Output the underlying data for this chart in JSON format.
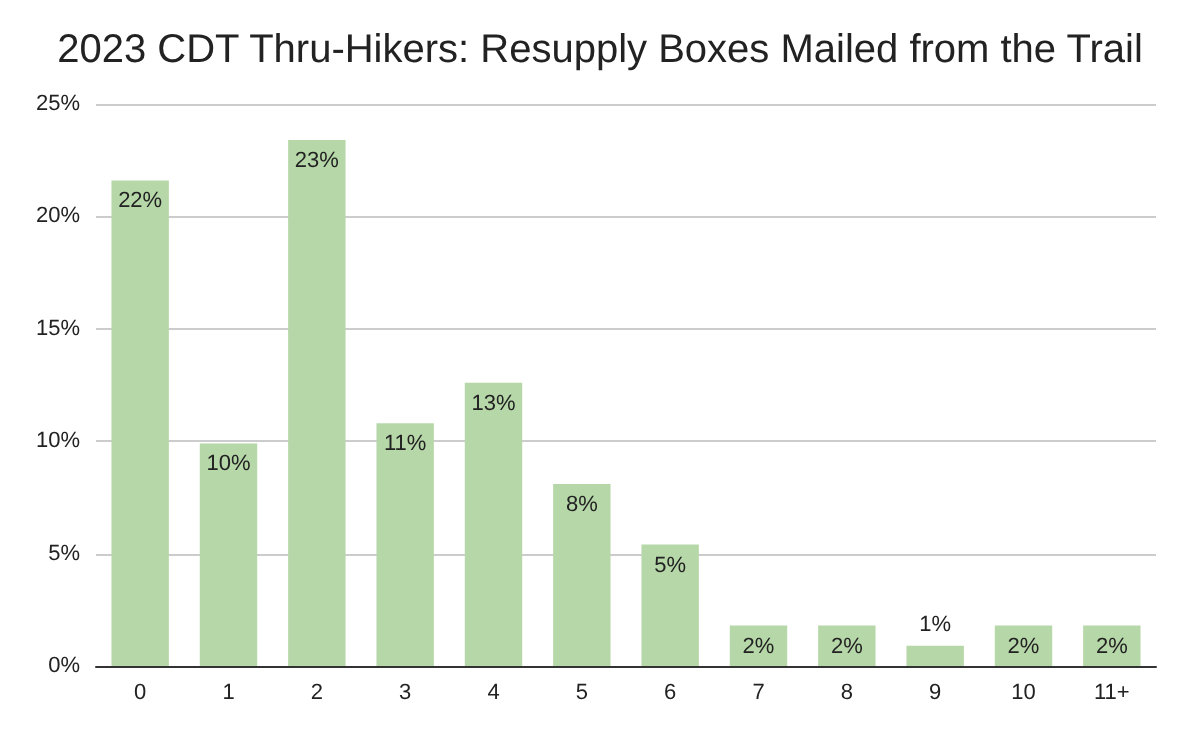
{
  "chart_data": {
    "type": "bar",
    "title": "2023 CDT Thru-Hikers: Resupply Boxes Mailed from the Trail",
    "categories": [
      "0",
      "1",
      "2",
      "3",
      "4",
      "5",
      "6",
      "7",
      "8",
      "9",
      "10",
      "11+"
    ],
    "values": [
      21.6,
      9.9,
      23.4,
      10.8,
      12.6,
      8.1,
      5.4,
      1.8,
      1.8,
      0.9,
      1.8,
      1.8
    ],
    "value_labels": [
      "22%",
      "10%",
      "23%",
      "11%",
      "13%",
      "8%",
      "5%",
      "2%",
      "2%",
      "1%",
      "2%",
      "2%"
    ],
    "color": "#b6d7a8",
    "ylim": [
      0,
      25
    ],
    "yticks": [
      {
        "value": 0,
        "label": "0%"
      },
      {
        "value": 5,
        "label": "5%"
      },
      {
        "value": 10,
        "label": "10%"
      },
      {
        "value": 15,
        "label": "15%"
      },
      {
        "value": 20,
        "label": "20%"
      },
      {
        "value": 25,
        "label": "25%"
      }
    ],
    "grid": true
  }
}
